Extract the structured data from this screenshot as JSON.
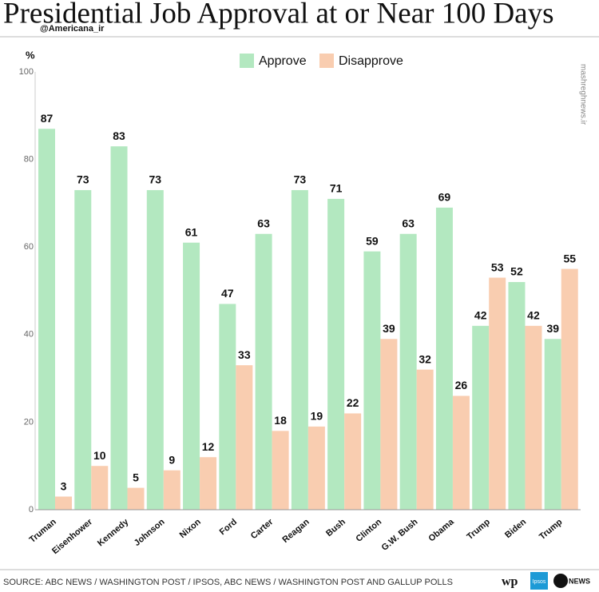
{
  "chart_data": {
    "type": "bar",
    "title": "Presidential Job Approval at or Near 100 Days",
    "watermark": "@Americana_ir",
    "side_mark": "mashreghnews.ir",
    "y_label": "%",
    "source": "SOURCE: ABC NEWS / WASHINGTON POST / IPSOS, ABC NEWS / WASHINGTON POST AND GALLUP POLLS",
    "logos": [
      "wp",
      "Ipsos",
      "abc NEWS"
    ],
    "categories": [
      "Truman",
      "Eisenhower",
      "Kennedy",
      "Johnson",
      "Nixon",
      "Ford",
      "Carter",
      "Reagan",
      "Bush",
      "Clinton",
      "G.W. Bush",
      "Obama",
      "Trump",
      "Biden",
      "Trump"
    ],
    "series": [
      {
        "name": "Approve",
        "color": "#b3e8c0",
        "values": [
          87,
          73,
          83,
          73,
          61,
          47,
          63,
          73,
          71,
          59,
          63,
          69,
          42,
          52,
          39
        ]
      },
      {
        "name": "Disapprove",
        "color": "#f9cdb0",
        "values": [
          3,
          10,
          5,
          9,
          12,
          33,
          18,
          19,
          22,
          39,
          32,
          26,
          53,
          42,
          55
        ]
      }
    ],
    "ylim": [
      0,
      100
    ],
    "yticks": [
      0,
      20,
      40,
      60,
      80,
      100
    ],
    "legend": "top"
  }
}
